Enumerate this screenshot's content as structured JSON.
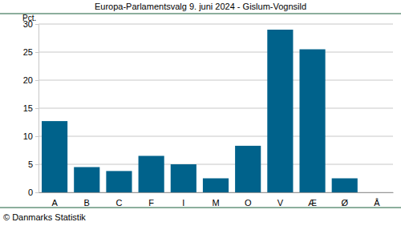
{
  "chart_data": {
    "type": "bar",
    "title": "Europa-Parlamentsvalg 9. juni 2024 - Gislum-Vognsild",
    "y_label": "Pct.",
    "source": "© Danmarks Statistik",
    "categories": [
      "A",
      "B",
      "C",
      "F",
      "I",
      "M",
      "O",
      "V",
      "Æ",
      "Ø",
      "Å"
    ],
    "values": [
      12.7,
      4.5,
      3.8,
      6.5,
      5.0,
      2.5,
      8.3,
      29.0,
      25.5,
      2.5,
      0
    ],
    "color": "#00628b",
    "ylim": [
      0,
      30
    ],
    "yticks": [
      0,
      5,
      10,
      15,
      20,
      25,
      30
    ],
    "grid": true
  }
}
